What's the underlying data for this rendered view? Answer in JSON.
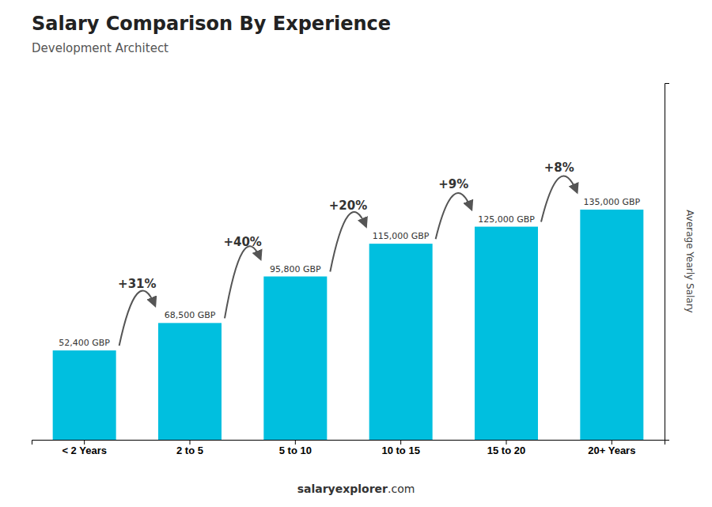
{
  "chart_data": {
    "type": "bar",
    "title": "Salary Comparison By Experience",
    "subtitle": "Development Architect",
    "ylabel": "Average Yearly Salary",
    "categories": [
      "< 2 Years",
      "2 to 5",
      "5 to 10",
      "10 to 15",
      "15 to 20",
      "20+ Years"
    ],
    "values": [
      52400,
      68500,
      95800,
      115000,
      125000,
      135000
    ],
    "value_labels": [
      "52,400 GBP",
      "68,500 GBP",
      "95,800 GBP",
      "115,000 GBP",
      "125,000 GBP",
      "135,000 GBP"
    ],
    "data_labels": true,
    "annotations": [
      "+31%",
      "+40%",
      "+20%",
      "+9%",
      "+8%"
    ],
    "footer": [
      "salary",
      "explorer",
      ".com"
    ],
    "color": "#00bfdf",
    "ylim": [
      0,
      209250
    ],
    "tick_labels": "x",
    "grid": false
  }
}
